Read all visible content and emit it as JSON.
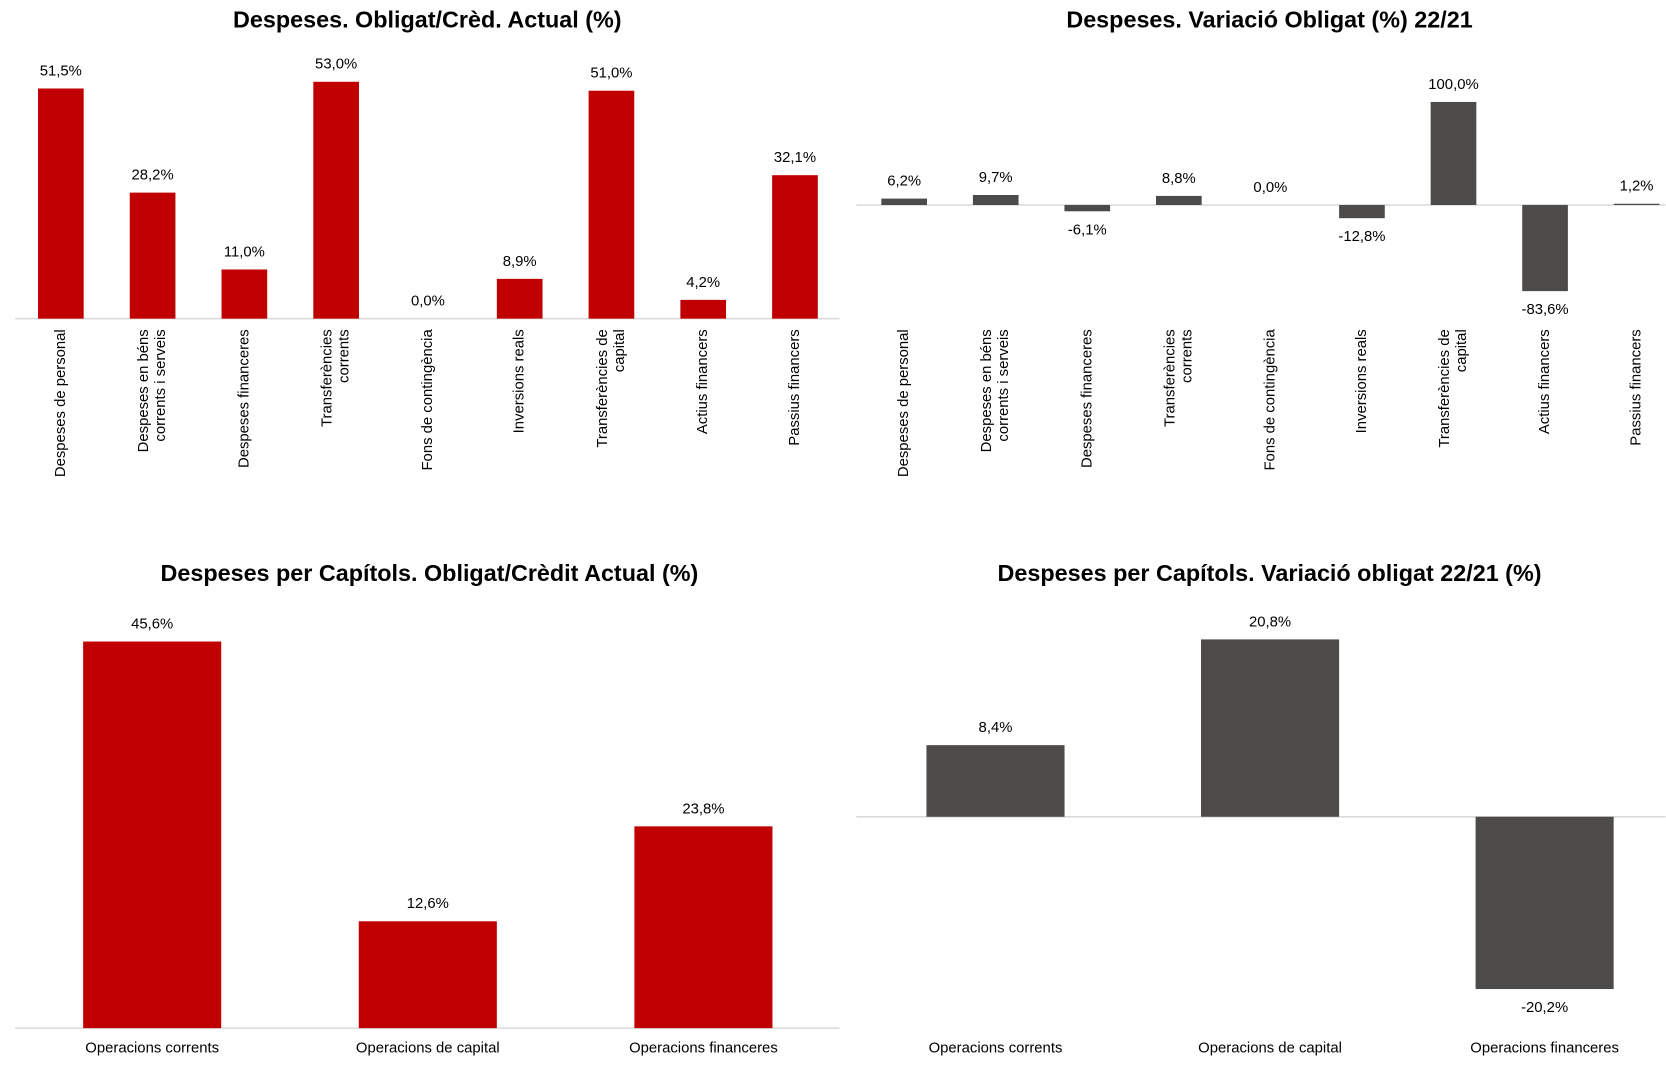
{
  "chart_data": [
    {
      "type": "bar",
      "title": "Despeses. Obligat/Crèd. Actual (%)",
      "color": "#c00000",
      "categories": [
        "Despeses de personal",
        "Despeses en béns\ncorrents i serveis",
        "Despeses financeres",
        "Transferències\ncorrents",
        "Fons de contingència",
        "Inversions reals",
        "Transferències de\ncapital",
        "Actius financers",
        "Passius financers"
      ],
      "values": [
        51.5,
        28.2,
        11.0,
        53.0,
        0.0,
        8.9,
        51.0,
        4.2,
        32.1
      ],
      "value_labels": [
        "51,5%",
        "28,2%",
        "11,0%",
        "53,0%",
        "0,0%",
        "8,9%",
        "51,0%",
        "4,2%",
        "32,1%"
      ]
    },
    {
      "type": "bar",
      "title": "Despeses. Variació Obligat (%)  22/21",
      "color": "#4d4a4a",
      "categories": [
        "Despeses de personal",
        "Despeses en béns\ncorrents i serveis",
        "Despeses financeres",
        "Transferències\ncorrents",
        "Fons de contingència",
        "Inversions reals",
        "Transferències de\ncapital",
        "Actius financers",
        "Passius financers"
      ],
      "values": [
        6.2,
        9.7,
        -6.1,
        8.8,
        0.0,
        -12.8,
        100.0,
        -83.6,
        1.2
      ],
      "value_labels": [
        "6,2%",
        "9,7%",
        "-6,1%",
        "8,8%",
        "0,0%",
        "-12,8%",
        "100,0%",
        "-83,6%",
        "1,2%"
      ]
    },
    {
      "type": "bar",
      "title": "Despeses per Capítols. Obligat/Crèdit Actual (%)",
      "color": "#c00000",
      "categories": [
        "Operacions corrents",
        "Operacions de capital",
        "Operacions financeres"
      ],
      "values": [
        45.6,
        12.6,
        23.8
      ],
      "value_labels": [
        "45,6%",
        "12,6%",
        "23,8%"
      ]
    },
    {
      "type": "bar",
      "title": "Despeses per Capítols. Variació obligat 22/21 (%)",
      "color": "#4d4a4a",
      "categories": [
        "Operacions corrents",
        "Operacions de capital",
        "Operacions financeres"
      ],
      "values": [
        8.4,
        20.8,
        -20.2
      ],
      "value_labels": [
        "8,4%",
        "20,8%",
        "-20,2%"
      ]
    }
  ]
}
